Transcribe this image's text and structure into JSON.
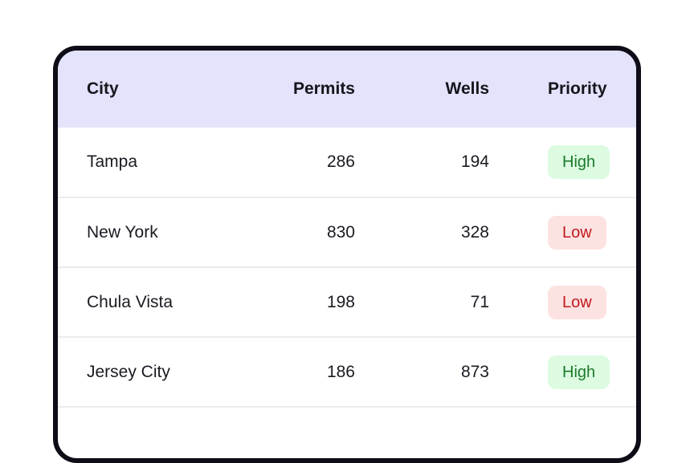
{
  "table": {
    "columns": [
      "City",
      "Permits",
      "Wells",
      "Priority"
    ],
    "rows": [
      {
        "city": "Tampa",
        "permits": "286",
        "wells": "194",
        "priority": "High"
      },
      {
        "city": "New York",
        "permits": "830",
        "wells": "328",
        "priority": "Low"
      },
      {
        "city": "Chula Vista",
        "permits": "198",
        "wells": "71",
        "priority": "Low"
      },
      {
        "city": "Jersey City",
        "permits": "186",
        "wells": "873",
        "priority": "High"
      }
    ]
  },
  "colors": {
    "header_bg": "#e3e3fc",
    "high_bg": "#dcfbe1",
    "high_text": "#1c7a2c",
    "low_bg": "#fde2e2",
    "low_text": "#c0191c",
    "border": "#0e0c17"
  }
}
